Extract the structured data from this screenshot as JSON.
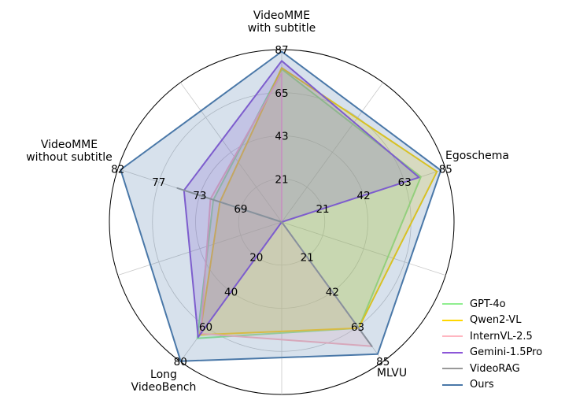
{
  "chart_data": {
    "type": "radar",
    "title": "",
    "axes": [
      {
        "label": "VideoMME\nwith subtitle",
        "ticks": [
          21,
          43,
          65,
          87
        ]
      },
      {
        "label": "Egoschema",
        "ticks": [
          21,
          42,
          63,
          85
        ]
      },
      {
        "label": "MLVU",
        "ticks": [
          21,
          42,
          63,
          85
        ]
      },
      {
        "label": "Long\nVideoBench",
        "ticks": [
          20,
          40,
          60,
          80
        ]
      },
      {
        "label": "VideoMME\nwithout subtitle",
        "ticks": [
          69,
          73,
          77,
          82
        ]
      }
    ],
    "series": [
      {
        "name": "GPT-4o",
        "color": "#90ee90",
        "values": [
          77.2,
          72.2,
          64.6,
          66.7,
          71.9
        ]
      },
      {
        "name": "Qwen2-VL",
        "color": "#ffd700",
        "values": [
          77.8,
          80.5,
          64.6,
          64.7,
          71.2
        ]
      },
      {
        "name": "InternVL-2.5",
        "color": "#ffb6c1",
        "values": [
          75.0,
          0,
          75.7,
          64.0,
          72.2
        ]
      },
      {
        "name": "Gemini-1.5Pro",
        "color": "#8c56d8",
        "values": [
          81.3,
          71.2,
          0,
          66.0,
          75.0
        ]
      },
      {
        "name": "VideoRAG",
        "color": "#999999",
        "values": [
          0,
          0,
          75.7,
          0,
          75.7
        ]
      },
      {
        "name": "Ours",
        "color": "#4a78a8",
        "values": [
          86.0,
          82.5,
          80.5,
          79.8,
          81.7
        ]
      }
    ],
    "grid": true,
    "legend_position": "bottom-right"
  }
}
